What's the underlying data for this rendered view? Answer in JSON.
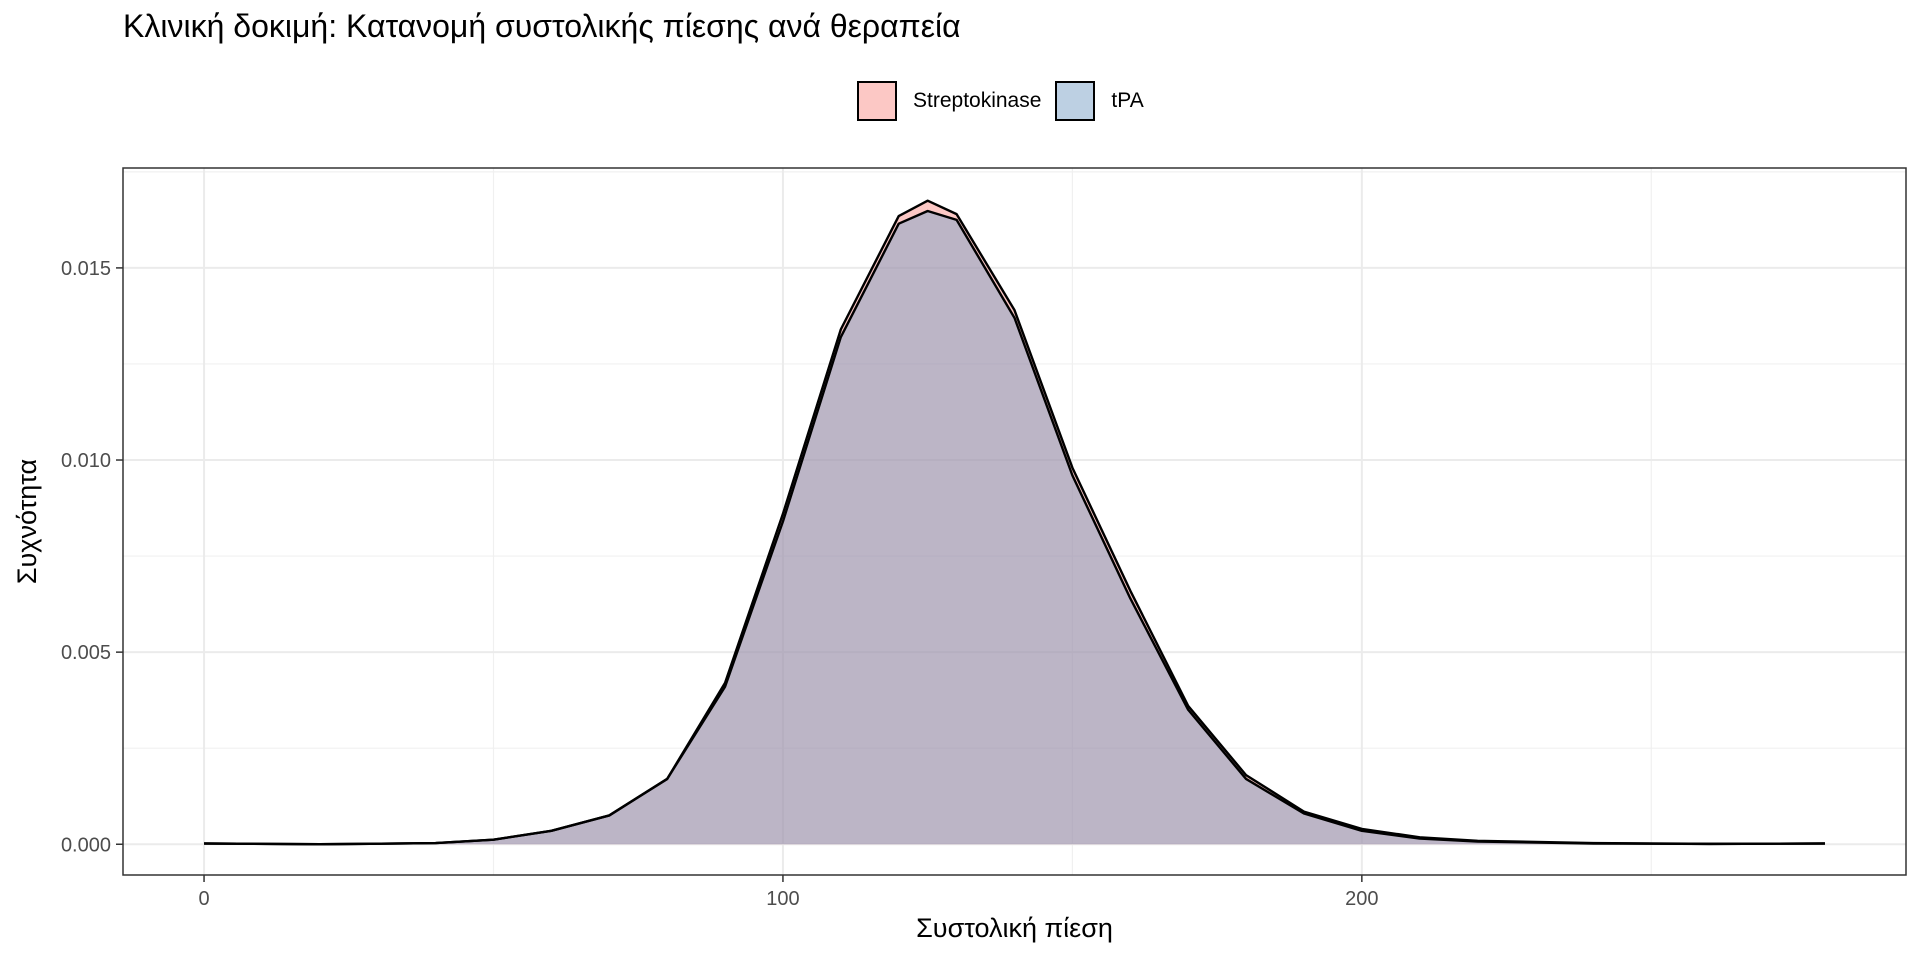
{
  "chart_data": {
    "type": "area",
    "subtype": "density",
    "title": "Κλινική δοκιμή: Κατανομή συστολικής πίεσης ανά θεραπεία",
    "xlabel": "Συστολική πίεση",
    "ylabel": "Συχνότητα",
    "xlim": [
      -14,
      294
    ],
    "ylim": [
      -0.0008,
      0.0176
    ],
    "x_ticks": [
      0,
      100,
      200
    ],
    "x_tick_labels": [
      "0",
      "100",
      "200"
    ],
    "y_ticks": [
      0,
      0.005,
      0.01,
      0.015
    ],
    "y_tick_labels": [
      "0.000",
      "0.005",
      "0.010",
      "0.015"
    ],
    "grid": true,
    "legend_position": "top",
    "series": [
      {
        "name": "Streptokinase",
        "fill_color": "#F8766D",
        "points": [
          [
            0,
            2e-05
          ],
          [
            20,
            0.0
          ],
          [
            40,
            3e-05
          ],
          [
            50,
            0.00012
          ],
          [
            60,
            0.00035
          ],
          [
            70,
            0.00075
          ],
          [
            80,
            0.0017
          ],
          [
            90,
            0.0042
          ],
          [
            100,
            0.0086
          ],
          [
            110,
            0.0134
          ],
          [
            120,
            0.01635
          ],
          [
            125,
            0.01675
          ],
          [
            130,
            0.0164
          ],
          [
            140,
            0.0139
          ],
          [
            150,
            0.0098
          ],
          [
            160,
            0.0066
          ],
          [
            170,
            0.0036
          ],
          [
            180,
            0.0018
          ],
          [
            190,
            0.00085
          ],
          [
            200,
            0.0004
          ],
          [
            210,
            0.00018
          ],
          [
            220,
            9e-05
          ],
          [
            240,
            3e-05
          ],
          [
            260,
            1e-05
          ],
          [
            280,
            2e-05
          ]
        ]
      },
      {
        "name": "tPA",
        "fill_color": "#7BA1C7",
        "points": [
          [
            0,
            2e-05
          ],
          [
            20,
            0.0
          ],
          [
            40,
            3e-05
          ],
          [
            50,
            0.00012
          ],
          [
            60,
            0.00035
          ],
          [
            70,
            0.00075
          ],
          [
            80,
            0.0017
          ],
          [
            90,
            0.0041
          ],
          [
            100,
            0.0084
          ],
          [
            110,
            0.0132
          ],
          [
            120,
            0.01615
          ],
          [
            125,
            0.01648
          ],
          [
            130,
            0.01625
          ],
          [
            140,
            0.0137
          ],
          [
            150,
            0.0096
          ],
          [
            160,
            0.0064
          ],
          [
            170,
            0.0035
          ],
          [
            180,
            0.0017
          ],
          [
            190,
            0.0008
          ],
          [
            200,
            0.00035
          ],
          [
            210,
            0.00015
          ],
          [
            220,
            7e-05
          ],
          [
            240,
            2e-05
          ],
          [
            260,
            1e-05
          ],
          [
            280,
            2e-05
          ]
        ]
      }
    ]
  }
}
